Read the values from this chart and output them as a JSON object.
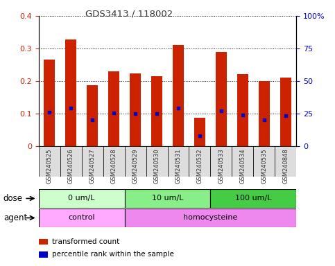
{
  "title": "GDS3413 / 118002",
  "samples": [
    "GSM240525",
    "GSM240526",
    "GSM240527",
    "GSM240528",
    "GSM240529",
    "GSM240530",
    "GSM240531",
    "GSM240532",
    "GSM240533",
    "GSM240534",
    "GSM240535",
    "GSM240848"
  ],
  "bar_values": [
    0.267,
    0.328,
    0.187,
    0.23,
    0.224,
    0.215,
    0.31,
    0.088,
    0.29,
    0.221,
    0.2,
    0.21
  ],
  "percentile_values": [
    0.105,
    0.118,
    0.082,
    0.103,
    0.1,
    0.1,
    0.118,
    0.032,
    0.108,
    0.097,
    0.082,
    0.095
  ],
  "bar_color": "#cc2200",
  "dot_color": "#0000cc",
  "ylim": [
    0,
    0.4
  ],
  "ylim_right": [
    0,
    100
  ],
  "yticks_left": [
    0,
    0.1,
    0.2,
    0.3,
    0.4
  ],
  "yticks_right": [
    0,
    25,
    50,
    75,
    100
  ],
  "ytick_labels_left": [
    "0",
    "0.1",
    "0.2",
    "0.3",
    "0.4"
  ],
  "ytick_labels_right": [
    "0",
    "25",
    "50",
    "75",
    "100%"
  ],
  "dose_groups": [
    {
      "label": "0 um/L",
      "start": 0,
      "end": 4,
      "color": "#ccffcc"
    },
    {
      "label": "10 um/L",
      "start": 4,
      "end": 8,
      "color": "#88ee88"
    },
    {
      "label": "100 um/L",
      "start": 8,
      "end": 12,
      "color": "#44cc44"
    }
  ],
  "agent_groups": [
    {
      "label": "control",
      "start": 0,
      "end": 4,
      "color": "#ffaaff"
    },
    {
      "label": "homocysteine",
      "start": 4,
      "end": 12,
      "color": "#ee88ee"
    }
  ],
  "dose_label": "dose",
  "agent_label": "agent",
  "legend_items": [
    {
      "label": "transformed count",
      "color": "#cc2200"
    },
    {
      "label": "percentile rank within the sample",
      "color": "#0000cc"
    }
  ],
  "bar_width": 0.5,
  "tick_label_color_left": "#cc2200",
  "tick_label_color_right": "#0000cc",
  "plot_bg_color": "#ffffff",
  "xtick_bg_color": "#dddddd"
}
